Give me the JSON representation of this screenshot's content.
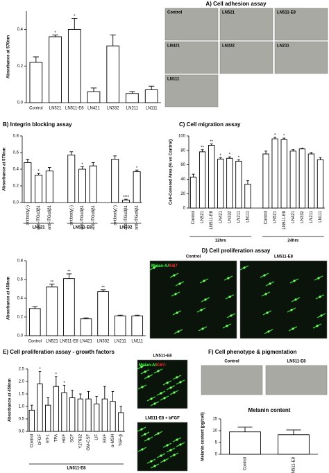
{
  "chart_data": [
    {
      "type": "bar",
      "title": "A) Cell adhesion assay",
      "y_label": "Absorbance at 570nm",
      "categories": [
        "Control",
        "LN521",
        "LN511-E8",
        "LN421",
        "LN332",
        "LN211",
        "LN111"
      ],
      "values": [
        0.22,
        0.36,
        0.4,
        0.06,
        0.31,
        0.05,
        0.07
      ],
      "errors": [
        0.03,
        0.01,
        0.06,
        0.02,
        0.06,
        0.01,
        0.02
      ],
      "significance": [
        null,
        "*",
        "*",
        null,
        null,
        null,
        null
      ],
      "ylim": [
        0,
        0.5
      ],
      "yticks": [
        {
          "value": 0,
          "label": "0.0"
        },
        0.2,
        0.4
      ],
      "images": [
        "Control",
        "LN521",
        "LN511-E8",
        "LN421",
        "LN332",
        "LN211",
        "LN111"
      ]
    },
    {
      "type": "bar",
      "title": "B) Integrin blocking assay",
      "y_label": "Absorbance at 570nm",
      "categories": [
        "antibody(-)",
        "anti-ITGα3β1",
        "anti-ITGα6β1"
      ],
      "groups": [
        {
          "name": "LN521",
          "values": [
            0.48,
            0.33,
            0.38
          ],
          "errors": [
            0.04,
            0.02,
            0.04
          ],
          "significance": [
            null,
            "*",
            null
          ]
        },
        {
          "name": "LN511-E8",
          "values": [
            0.57,
            0.4,
            0.44
          ],
          "errors": [
            0.04,
            0.03,
            0.04
          ],
          "significance": [
            null,
            "*",
            null
          ]
        },
        {
          "name": "LN332",
          "values": [
            0.52,
            0.03,
            0.37
          ],
          "errors": [
            0.04,
            0.01,
            0.02
          ],
          "significance": [
            null,
            "****",
            "*"
          ]
        }
      ],
      "ylim": [
        0,
        0.8
      ],
      "yticks": [
        {
          "value": 0,
          "label": "0.0"
        },
        0.2,
        0.4,
        0.6,
        0.8
      ]
    },
    {
      "type": "bar",
      "title": "C) Cell migration assay",
      "y_label": "Cell-Covered Area (% vs Control)",
      "categories": [
        "Control",
        "LN521",
        "LN511-E8",
        "LN421",
        "LN332",
        "LN211",
        "LN111"
      ],
      "groups": [
        {
          "name": "12hrs",
          "values": [
            43,
            78,
            87,
            68,
            69,
            65,
            33
          ],
          "errors": [
            4,
            3,
            2,
            2,
            2,
            2,
            5
          ],
          "significance": [
            null,
            "**",
            "**",
            "*",
            "*",
            "*",
            null
          ]
        },
        {
          "name": "24hrs",
          "values": [
            75,
            96,
            95,
            79,
            82,
            75,
            67
          ],
          "errors": [
            4,
            2,
            2,
            2,
            1,
            2,
            3
          ],
          "significance": [
            null,
            "*",
            "*",
            null,
            null,
            null,
            null
          ]
        }
      ],
      "ylim": [
        0,
        100
      ],
      "yticks": [
        0,
        20,
        40,
        60,
        80,
        100
      ]
    },
    {
      "type": "bar",
      "title": "D) Cell proliferation assay",
      "y_label": "Absorbance at 450nm",
      "categories": [
        "Control",
        "LN521",
        "LN511-E8",
        "LN421",
        "LN332",
        "LN211",
        "LN111"
      ],
      "values": [
        0.29,
        0.52,
        0.61,
        0.18,
        0.47,
        0.21,
        0.21
      ],
      "errors": [
        0.02,
        0.03,
        0.05,
        0.01,
        0.02,
        0.01,
        0.01
      ],
      "significance": [
        null,
        "**",
        "**",
        null,
        "**",
        null,
        null
      ],
      "ylim": [
        0,
        0.8
      ],
      "yticks": [
        {
          "value": 0,
          "label": "0.0"
        },
        0.2,
        0.4,
        0.6,
        0.8
      ],
      "images": [
        "Control",
        "LN511-E8"
      ],
      "stain_labels": [
        "Melan-A/",
        "Ki67"
      ]
    },
    {
      "type": "bar",
      "title": "E) Cell proliferation assay - growth factors",
      "y_label": "Absorbance at 450nm",
      "categories": [
        "Control",
        "bFGF",
        "ET-1",
        "TPA",
        "HGF",
        "SCF",
        "Y27632",
        "GM-CSF",
        "LIF",
        "EGF",
        "α-MSH",
        "TGF-β"
      ],
      "values": [
        0.85,
        1.9,
        1.05,
        1.8,
        1.55,
        1.35,
        1.3,
        1.3,
        1.1,
        1.3,
        1.2,
        0.75
      ],
      "errors": [
        0.2,
        0.5,
        0.3,
        0.4,
        0.3,
        0.3,
        0.2,
        0.3,
        0.3,
        0.5,
        0.4,
        0.25
      ],
      "significance": [
        null,
        "*",
        null,
        "*",
        "*",
        null,
        null,
        null,
        null,
        null,
        null,
        null
      ],
      "x_group_label": "LN511-E8",
      "ylim": [
        0,
        2.5
      ],
      "yticks": [
        {
          "value": 0,
          "label": "0.0"
        },
        0.5,
        {
          "value": 1,
          "label": "1.0"
        },
        1.5,
        {
          "value": 2,
          "label": "2.0"
        },
        2.5
      ],
      "images": [
        "LN511-E8",
        "LN511-E8 + bFGF"
      ],
      "stain_labels": [
        "Melan-A/",
        "Ki67-"
      ]
    },
    {
      "type": "bar",
      "title": "F) Cell phenotype & pigmentation",
      "subtitle": "Melanin content",
      "y_label": "Melanin content (pg/cell)",
      "categories": [
        "Control",
        "LN511-E8"
      ],
      "values": [
        9.5,
        8.3
      ],
      "errors": [
        2,
        2
      ],
      "ylim": [
        0,
        15
      ],
      "yticks": [
        0,
        5,
        10,
        15
      ],
      "images": [
        "Control",
        "LN511-E8"
      ]
    }
  ]
}
